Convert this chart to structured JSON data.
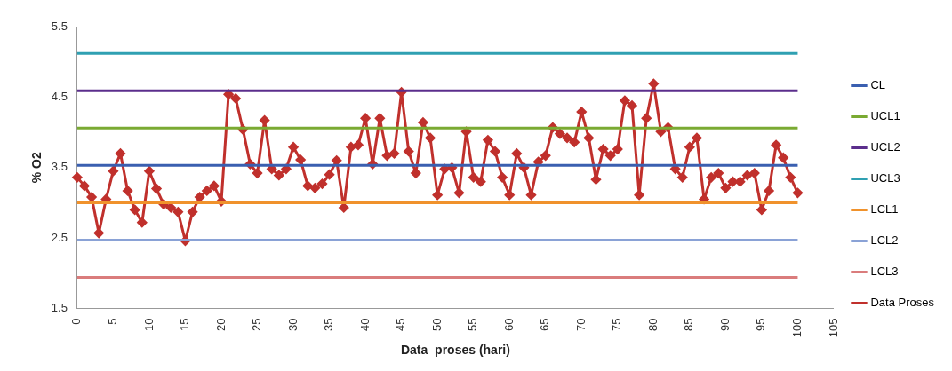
{
  "chart_data": {
    "type": "line",
    "xlabel": "Data  proses (hari)",
    "ylabel": "% O2",
    "x": [
      0,
      1,
      2,
      3,
      4,
      5,
      6,
      7,
      8,
      9,
      10,
      11,
      12,
      13,
      14,
      15,
      16,
      17,
      18,
      19,
      20,
      21,
      22,
      23,
      24,
      25,
      26,
      27,
      28,
      29,
      30,
      31,
      32,
      33,
      34,
      35,
      36,
      37,
      38,
      39,
      40,
      41,
      42,
      43,
      44,
      45,
      46,
      47,
      48,
      49,
      50,
      51,
      52,
      53,
      54,
      55,
      56,
      57,
      58,
      59,
      60,
      61,
      62,
      63,
      64,
      65,
      66,
      67,
      68,
      69,
      70,
      71,
      72,
      73,
      74,
      75,
      76,
      77,
      78,
      79,
      80,
      81,
      82,
      83,
      84,
      85,
      86,
      87,
      88,
      89,
      90,
      91,
      92,
      93,
      94,
      95,
      96,
      97,
      98,
      99,
      100
    ],
    "series": [
      {
        "name": "CL",
        "color": "#3a5fb0",
        "marker": "none",
        "values": [
          3.53,
          3.53,
          3.53,
          3.53,
          3.53,
          3.53,
          3.53,
          3.53,
          3.53,
          3.53,
          3.53,
          3.53,
          3.53,
          3.53,
          3.53,
          3.53,
          3.53,
          3.53,
          3.53,
          3.53,
          3.53,
          3.53,
          3.53,
          3.53,
          3.53,
          3.53,
          3.53,
          3.53,
          3.53,
          3.53,
          3.53,
          3.53,
          3.53,
          3.53,
          3.53,
          3.53,
          3.53,
          3.53,
          3.53,
          3.53,
          3.53,
          3.53,
          3.53,
          3.53,
          3.53,
          3.53,
          3.53,
          3.53,
          3.53,
          3.53,
          3.53,
          3.53,
          3.53,
          3.53,
          3.53,
          3.53,
          3.53,
          3.53,
          3.53,
          3.53,
          3.53,
          3.53,
          3.53,
          3.53,
          3.53,
          3.53,
          3.53,
          3.53,
          3.53,
          3.53,
          3.53,
          3.53,
          3.53,
          3.53,
          3.53,
          3.53,
          3.53,
          3.53,
          3.53,
          3.53,
          3.53,
          3.53,
          3.53,
          3.53,
          3.53,
          3.53,
          3.53,
          3.53,
          3.53,
          3.53,
          3.53,
          3.53,
          3.53,
          3.53,
          3.53,
          3.53,
          3.53,
          3.53,
          3.53,
          3.53,
          3.53
        ]
      },
      {
        "name": "UCL1",
        "color": "#7aaa32",
        "marker": "none",
        "values": [
          4.06,
          4.06,
          4.06,
          4.06,
          4.06,
          4.06,
          4.06,
          4.06,
          4.06,
          4.06,
          4.06,
          4.06,
          4.06,
          4.06,
          4.06,
          4.06,
          4.06,
          4.06,
          4.06,
          4.06,
          4.06,
          4.06,
          4.06,
          4.06,
          4.06,
          4.06,
          4.06,
          4.06,
          4.06,
          4.06,
          4.06,
          4.06,
          4.06,
          4.06,
          4.06,
          4.06,
          4.06,
          4.06,
          4.06,
          4.06,
          4.06,
          4.06,
          4.06,
          4.06,
          4.06,
          4.06,
          4.06,
          4.06,
          4.06,
          4.06,
          4.06,
          4.06,
          4.06,
          4.06,
          4.06,
          4.06,
          4.06,
          4.06,
          4.06,
          4.06,
          4.06,
          4.06,
          4.06,
          4.06,
          4.06,
          4.06,
          4.06,
          4.06,
          4.06,
          4.06,
          4.06,
          4.06,
          4.06,
          4.06,
          4.06,
          4.06,
          4.06,
          4.06,
          4.06,
          4.06,
          4.06,
          4.06,
          4.06,
          4.06,
          4.06,
          4.06,
          4.06,
          4.06,
          4.06,
          4.06,
          4.06,
          4.06,
          4.06,
          4.06,
          4.06,
          4.06,
          4.06,
          4.06,
          4.06,
          4.06,
          4.06
        ]
      },
      {
        "name": "UCL2",
        "color": "#5b2e8c",
        "marker": "none",
        "values": [
          4.59,
          4.59,
          4.59,
          4.59,
          4.59,
          4.59,
          4.59,
          4.59,
          4.59,
          4.59,
          4.59,
          4.59,
          4.59,
          4.59,
          4.59,
          4.59,
          4.59,
          4.59,
          4.59,
          4.59,
          4.59,
          4.59,
          4.59,
          4.59,
          4.59,
          4.59,
          4.59,
          4.59,
          4.59,
          4.59,
          4.59,
          4.59,
          4.59,
          4.59,
          4.59,
          4.59,
          4.59,
          4.59,
          4.59,
          4.59,
          4.59,
          4.59,
          4.59,
          4.59,
          4.59,
          4.59,
          4.59,
          4.59,
          4.59,
          4.59,
          4.59,
          4.59,
          4.59,
          4.59,
          4.59,
          4.59,
          4.59,
          4.59,
          4.59,
          4.59,
          4.59,
          4.59,
          4.59,
          4.59,
          4.59,
          4.59,
          4.59,
          4.59,
          4.59,
          4.59,
          4.59,
          4.59,
          4.59,
          4.59,
          4.59,
          4.59,
          4.59,
          4.59,
          4.59,
          4.59,
          4.59,
          4.59,
          4.59,
          4.59,
          4.59,
          4.59,
          4.59,
          4.59,
          4.59,
          4.59,
          4.59,
          4.59,
          4.59,
          4.59,
          4.59,
          4.59,
          4.59,
          4.59,
          4.59,
          4.59,
          4.59
        ]
      },
      {
        "name": "UCL3",
        "color": "#2fa0b2",
        "marker": "none",
        "values": [
          5.12,
          5.12,
          5.12,
          5.12,
          5.12,
          5.12,
          5.12,
          5.12,
          5.12,
          5.12,
          5.12,
          5.12,
          5.12,
          5.12,
          5.12,
          5.12,
          5.12,
          5.12,
          5.12,
          5.12,
          5.12,
          5.12,
          5.12,
          5.12,
          5.12,
          5.12,
          5.12,
          5.12,
          5.12,
          5.12,
          5.12,
          5.12,
          5.12,
          5.12,
          5.12,
          5.12,
          5.12,
          5.12,
          5.12,
          5.12,
          5.12,
          5.12,
          5.12,
          5.12,
          5.12,
          5.12,
          5.12,
          5.12,
          5.12,
          5.12,
          5.12,
          5.12,
          5.12,
          5.12,
          5.12,
          5.12,
          5.12,
          5.12,
          5.12,
          5.12,
          5.12,
          5.12,
          5.12,
          5.12,
          5.12,
          5.12,
          5.12,
          5.12,
          5.12,
          5.12,
          5.12,
          5.12,
          5.12,
          5.12,
          5.12,
          5.12,
          5.12,
          5.12,
          5.12,
          5.12,
          5.12,
          5.12,
          5.12,
          5.12,
          5.12,
          5.12,
          5.12,
          5.12,
          5.12,
          5.12,
          5.12,
          5.12,
          5.12,
          5.12,
          5.12,
          5.12,
          5.12,
          5.12,
          5.12,
          5.12,
          5.12
        ]
      },
      {
        "name": "LCL1",
        "color": "#f0922c",
        "marker": "none",
        "values": [
          3.0,
          3.0,
          3.0,
          3.0,
          3.0,
          3.0,
          3.0,
          3.0,
          3.0,
          3.0,
          3.0,
          3.0,
          3.0,
          3.0,
          3.0,
          3.0,
          3.0,
          3.0,
          3.0,
          3.0,
          3.0,
          3.0,
          3.0,
          3.0,
          3.0,
          3.0,
          3.0,
          3.0,
          3.0,
          3.0,
          3.0,
          3.0,
          3.0,
          3.0,
          3.0,
          3.0,
          3.0,
          3.0,
          3.0,
          3.0,
          3.0,
          3.0,
          3.0,
          3.0,
          3.0,
          3.0,
          3.0,
          3.0,
          3.0,
          3.0,
          3.0,
          3.0,
          3.0,
          3.0,
          3.0,
          3.0,
          3.0,
          3.0,
          3.0,
          3.0,
          3.0,
          3.0,
          3.0,
          3.0,
          3.0,
          3.0,
          3.0,
          3.0,
          3.0,
          3.0,
          3.0,
          3.0,
          3.0,
          3.0,
          3.0,
          3.0,
          3.0,
          3.0,
          3.0,
          3.0,
          3.0,
          3.0,
          3.0,
          3.0,
          3.0,
          3.0,
          3.0,
          3.0,
          3.0,
          3.0,
          3.0,
          3.0,
          3.0,
          3.0,
          3.0,
          3.0,
          3.0,
          3.0,
          3.0,
          3.0,
          3.0
        ]
      },
      {
        "name": "LCL2",
        "color": "#8aa2d6",
        "marker": "none",
        "values": [
          2.47,
          2.47,
          2.47,
          2.47,
          2.47,
          2.47,
          2.47,
          2.47,
          2.47,
          2.47,
          2.47,
          2.47,
          2.47,
          2.47,
          2.47,
          2.47,
          2.47,
          2.47,
          2.47,
          2.47,
          2.47,
          2.47,
          2.47,
          2.47,
          2.47,
          2.47,
          2.47,
          2.47,
          2.47,
          2.47,
          2.47,
          2.47,
          2.47,
          2.47,
          2.47,
          2.47,
          2.47,
          2.47,
          2.47,
          2.47,
          2.47,
          2.47,
          2.47,
          2.47,
          2.47,
          2.47,
          2.47,
          2.47,
          2.47,
          2.47,
          2.47,
          2.47,
          2.47,
          2.47,
          2.47,
          2.47,
          2.47,
          2.47,
          2.47,
          2.47,
          2.47,
          2.47,
          2.47,
          2.47,
          2.47,
          2.47,
          2.47,
          2.47,
          2.47,
          2.47,
          2.47,
          2.47,
          2.47,
          2.47,
          2.47,
          2.47,
          2.47,
          2.47,
          2.47,
          2.47,
          2.47,
          2.47,
          2.47,
          2.47,
          2.47,
          2.47,
          2.47,
          2.47,
          2.47,
          2.47,
          2.47,
          2.47,
          2.47,
          2.47,
          2.47,
          2.47,
          2.47,
          2.47,
          2.47,
          2.47,
          2.47
        ]
      },
      {
        "name": "LCL3",
        "color": "#da7c7c",
        "marker": "none",
        "values": [
          1.94,
          1.94,
          1.94,
          1.94,
          1.94,
          1.94,
          1.94,
          1.94,
          1.94,
          1.94,
          1.94,
          1.94,
          1.94,
          1.94,
          1.94,
          1.94,
          1.94,
          1.94,
          1.94,
          1.94,
          1.94,
          1.94,
          1.94,
          1.94,
          1.94,
          1.94,
          1.94,
          1.94,
          1.94,
          1.94,
          1.94,
          1.94,
          1.94,
          1.94,
          1.94,
          1.94,
          1.94,
          1.94,
          1.94,
          1.94,
          1.94,
          1.94,
          1.94,
          1.94,
          1.94,
          1.94,
          1.94,
          1.94,
          1.94,
          1.94,
          1.94,
          1.94,
          1.94,
          1.94,
          1.94,
          1.94,
          1.94,
          1.94,
          1.94,
          1.94,
          1.94,
          1.94,
          1.94,
          1.94,
          1.94,
          1.94,
          1.94,
          1.94,
          1.94,
          1.94,
          1.94,
          1.94,
          1.94,
          1.94,
          1.94,
          1.94,
          1.94,
          1.94,
          1.94,
          1.94,
          1.94,
          1.94,
          1.94,
          1.94,
          1.94,
          1.94,
          1.94,
          1.94,
          1.94,
          1.94,
          1.94,
          1.94,
          1.94,
          1.94,
          1.94,
          1.94,
          1.94,
          1.94,
          1.94,
          1.94,
          1.94
        ]
      },
      {
        "name": "Data Proses",
        "color": "#c0302c",
        "marker": "diamond",
        "values": [
          3.36,
          3.24,
          3.08,
          2.57,
          3.05,
          3.45,
          3.7,
          3.17,
          2.9,
          2.72,
          3.45,
          3.2,
          2.98,
          2.93,
          2.87,
          2.46,
          2.87,
          3.08,
          3.17,
          3.24,
          3.02,
          4.54,
          4.48,
          4.04,
          3.55,
          3.42,
          4.17,
          3.48,
          3.39,
          3.48,
          3.79,
          3.61,
          3.24,
          3.21,
          3.27,
          3.4,
          3.6,
          2.93,
          3.79,
          3.82,
          4.2,
          3.55,
          4.2,
          3.67,
          3.7,
          4.57,
          3.73,
          3.42,
          4.14,
          3.92,
          3.11,
          3.48,
          3.5,
          3.14,
          4.01,
          3.36,
          3.3,
          3.89,
          3.73,
          3.36,
          3.11,
          3.7,
          3.5,
          3.11,
          3.58,
          3.67,
          4.07,
          3.98,
          3.92,
          3.86,
          4.29,
          3.92,
          3.33,
          3.76,
          3.67,
          3.76,
          4.45,
          4.38,
          3.11,
          4.2,
          4.69,
          4.01,
          4.07,
          3.48,
          3.36,
          3.79,
          3.92,
          3.05,
          3.36,
          3.42,
          3.21,
          3.3,
          3.3,
          3.39,
          3.42,
          2.9,
          3.17,
          3.82,
          3.64,
          3.36,
          3.14
        ]
      }
    ],
    "xlim": [
      0,
      105
    ],
    "xticks": [
      0,
      5,
      10,
      15,
      20,
      25,
      30,
      35,
      40,
      45,
      50,
      55,
      60,
      65,
      70,
      75,
      80,
      85,
      90,
      95,
      100,
      105
    ],
    "ylim": [
      1.5,
      5.5
    ],
    "yticks": [
      1.5,
      2.5,
      3.5,
      4.5,
      5.5
    ],
    "grid": false,
    "legend": "right",
    "line_style": "solid"
  }
}
